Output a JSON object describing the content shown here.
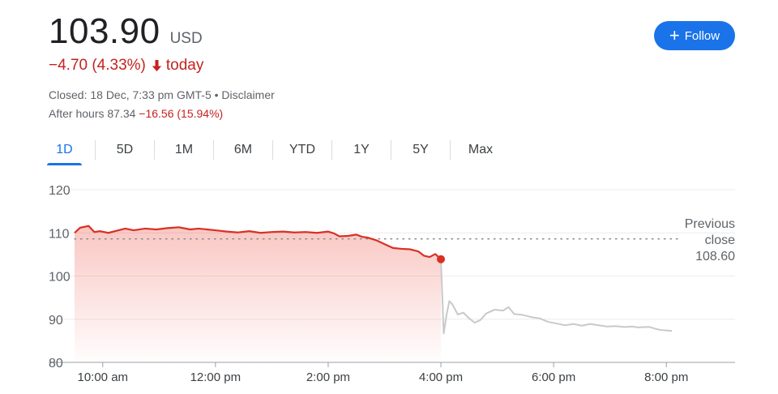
{
  "quote": {
    "price": "103.90",
    "currency": "USD",
    "change": "−4.70 (4.33%)",
    "change_period": "today",
    "closed_info": "Closed: 18 Dec, 7:33 pm GMT-5 • Disclaimer",
    "after_hours_label": "After hours 87.34",
    "after_hours_change": "−16.56 (15.94%)",
    "negative_color": "#c5221f"
  },
  "follow_button": {
    "label": "Follow",
    "color": "#1a73e8"
  },
  "range_tabs": [
    {
      "label": "1D",
      "active": true
    },
    {
      "label": "5D",
      "active": false
    },
    {
      "label": "1M",
      "active": false
    },
    {
      "label": "6M",
      "active": false
    },
    {
      "label": "YTD",
      "active": false
    },
    {
      "label": "1Y",
      "active": false
    },
    {
      "label": "5Y",
      "active": false
    },
    {
      "label": "Max",
      "active": false
    }
  ],
  "chart_data": {
    "type": "line",
    "ylim": [
      80,
      120
    ],
    "yticks": [
      80,
      90,
      100,
      110,
      120
    ],
    "xlim": [
      9.5,
      20.5
    ],
    "xticks": [
      {
        "value": 10,
        "label": "10:00 am"
      },
      {
        "value": 12,
        "label": "12:00 pm"
      },
      {
        "value": 14,
        "label": "2:00 pm"
      },
      {
        "value": 16,
        "label": "4:00 pm"
      },
      {
        "value": 18,
        "label": "6:00 pm"
      },
      {
        "value": 20,
        "label": "8:00 pm"
      }
    ],
    "grid": true,
    "previous_close": {
      "lines": [
        "Previous",
        "close",
        "108.60"
      ],
      "value": 108.6
    },
    "series": [
      {
        "session": "regular",
        "color": "#d93025",
        "x": [
          9.5,
          9.6,
          9.75,
          9.85,
          9.95,
          10.1,
          10.25,
          10.4,
          10.55,
          10.75,
          10.95,
          11.15,
          11.35,
          11.55,
          11.7,
          11.85,
          12.0,
          12.2,
          12.4,
          12.6,
          12.8,
          13.0,
          13.2,
          13.4,
          13.6,
          13.8,
          14.0,
          14.1,
          14.2,
          14.35,
          14.5,
          14.6,
          14.7,
          14.85,
          15.0,
          15.15,
          15.3,
          15.45,
          15.6,
          15.7,
          15.8,
          15.9,
          16.0
        ],
        "y": [
          110.0,
          111.2,
          111.6,
          110.2,
          110.4,
          110.0,
          110.5,
          111.0,
          110.6,
          111.0,
          110.8,
          111.1,
          111.3,
          110.8,
          111.0,
          110.8,
          110.6,
          110.3,
          110.1,
          110.4,
          110.0,
          110.2,
          110.3,
          110.1,
          110.2,
          110.0,
          110.3,
          109.9,
          109.2,
          109.3,
          109.6,
          109.1,
          108.9,
          108.3,
          107.4,
          106.5,
          106.3,
          106.2,
          105.7,
          104.7,
          104.4,
          105.1,
          103.9
        ]
      },
      {
        "session": "after_hours",
        "color": "#c9c9c9",
        "x": [
          16.0,
          16.05,
          16.1,
          16.15,
          16.2,
          16.3,
          16.4,
          16.5,
          16.6,
          16.7,
          16.8,
          16.95,
          17.1,
          17.2,
          17.3,
          17.45,
          17.6,
          17.75,
          17.9,
          18.05,
          18.2,
          18.35,
          18.5,
          18.65,
          18.8,
          18.95,
          19.1,
          19.25,
          19.4,
          19.5,
          19.6,
          19.7,
          19.8,
          19.9,
          20.0,
          20.1
        ],
        "y": [
          103.9,
          86.7,
          91.0,
          94.2,
          93.5,
          91.1,
          91.5,
          90.2,
          89.2,
          89.8,
          91.3,
          92.2,
          92.0,
          92.8,
          91.2,
          91.0,
          90.5,
          90.2,
          89.4,
          89.0,
          88.6,
          88.9,
          88.5,
          88.9,
          88.6,
          88.3,
          88.4,
          88.2,
          88.3,
          88.1,
          88.2,
          88.2,
          87.8,
          87.5,
          87.4,
          87.3
        ]
      }
    ],
    "last_regular_point": {
      "x": 16.0,
      "y": 103.9
    }
  }
}
